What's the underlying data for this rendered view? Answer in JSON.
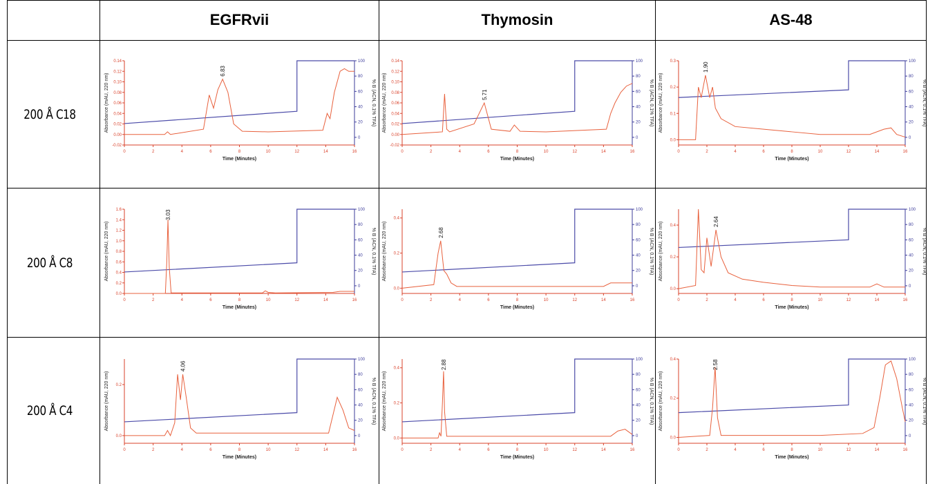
{
  "headers": {
    "corner": "",
    "col1": "EGFRvii",
    "col2": "Thymosin",
    "col3": "AS-48"
  },
  "rows": [
    "200 Å C18",
    "200 Å C8",
    "200 Å C4"
  ],
  "colors": {
    "trace": "#e8603c",
    "gradient": "#4a4aa8",
    "axis_left": "#d9412a",
    "axis_right": "#3b3b9a"
  },
  "chart_data": [
    {
      "type": "line",
      "title": "",
      "xlabel": "Time (Minutes)",
      "ylabel": "Absorbance (mAU, 220 nm)",
      "y2label": "% B (ACN, 0.1% TFA)",
      "xlim": [
        0,
        16
      ],
      "xticks": [
        "0",
        "2",
        "4",
        "6",
        "8",
        "10",
        "12",
        "14",
        "16"
      ],
      "ylim": [
        -0.02,
        0.14
      ],
      "yticks": [
        "-0.02",
        "0.00",
        "0.02",
        "0.04",
        "0.06",
        "0.08",
        "0.10",
        "0.12",
        "0.14"
      ],
      "y2lim": [
        -10,
        100
      ],
      "y2ticks": [
        "0",
        "20",
        "40",
        "60",
        "80",
        "100"
      ],
      "peak_label": "6.83",
      "peak_x": 6.83,
      "x": [
        0,
        2.8,
        3.0,
        3.2,
        5.5,
        5.9,
        6.2,
        6.5,
        6.83,
        7.2,
        7.6,
        8.2,
        10,
        13.8,
        14.1,
        14.3,
        14.6,
        15.0,
        15.3,
        15.6,
        16
      ],
      "y": [
        0.0,
        0.0,
        0.005,
        0.0,
        0.01,
        0.075,
        0.05,
        0.085,
        0.105,
        0.08,
        0.02,
        0.006,
        0.005,
        0.008,
        0.04,
        0.03,
        0.08,
        0.12,
        0.125,
        0.12,
        0.12
      ],
      "gradient": {
        "x": [
          0,
          12,
          12,
          16
        ],
        "y": [
          18,
          34,
          100,
          100
        ]
      }
    },
    {
      "type": "line",
      "title": "",
      "xlabel": "Time (Minutes)",
      "ylabel": "Absorbance (mAU, 220 nm)",
      "y2label": "% B (ACN, 0.1% TFA)",
      "xlim": [
        0,
        16
      ],
      "xticks": [
        "0",
        "2",
        "4",
        "6",
        "8",
        "10",
        "12",
        "14",
        "16"
      ],
      "ylim": [
        -0.02,
        0.14
      ],
      "yticks": [
        "-0.02",
        "0.00",
        "0.02",
        "0.04",
        "0.06",
        "0.08",
        "0.10",
        "0.12",
        "0.14"
      ],
      "y2lim": [
        -10,
        100
      ],
      "y2ticks": [
        "0",
        "20",
        "40",
        "60",
        "80",
        "100"
      ],
      "peak_label": "5.71",
      "peak_x": 5.71,
      "x": [
        0,
        2.8,
        2.95,
        3.1,
        3.3,
        5.0,
        5.71,
        6.2,
        7.5,
        7.8,
        8.2,
        10,
        14.2,
        14.5,
        14.8,
        15.2,
        15.6,
        16
      ],
      "y": [
        0.0,
        0.005,
        0.077,
        0.01,
        0.005,
        0.02,
        0.06,
        0.01,
        0.006,
        0.018,
        0.006,
        0.005,
        0.01,
        0.04,
        0.06,
        0.08,
        0.092,
        0.097
      ],
      "gradient": {
        "x": [
          0,
          12,
          12,
          16
        ],
        "y": [
          18,
          34,
          100,
          100
        ]
      }
    },
    {
      "type": "line",
      "title": "",
      "xlabel": "Time (Minutes)",
      "ylabel": "Absorbance (mAU, 220 nm)",
      "y2label": "% B (ACN, 0.1% TFA)",
      "xlim": [
        0,
        16
      ],
      "xticks": [
        "0",
        "2",
        "4",
        "6",
        "8",
        "10",
        "12",
        "14",
        "16"
      ],
      "ylim": [
        -0.02,
        0.3
      ],
      "yticks": [
        "0.0",
        "0.1",
        "0.2",
        "0.3"
      ],
      "y2lim": [
        -10,
        100
      ],
      "y2ticks": [
        "0",
        "20",
        "40",
        "60",
        "80",
        "100"
      ],
      "peak_label": "1.90",
      "peak_x": 1.9,
      "x": [
        0,
        1.2,
        1.4,
        1.6,
        1.9,
        2.2,
        2.4,
        2.6,
        3.0,
        4.0,
        6.0,
        8.0,
        10,
        12,
        13.5,
        14.5,
        15.0,
        15.4,
        16
      ],
      "y": [
        0.0,
        0.0,
        0.2,
        0.16,
        0.245,
        0.16,
        0.2,
        0.12,
        0.08,
        0.05,
        0.04,
        0.03,
        0.02,
        0.02,
        0.02,
        0.04,
        0.045,
        0.02,
        0.01
      ],
      "gradient": {
        "x": [
          0,
          12,
          12,
          16
        ],
        "y": [
          52,
          62,
          100,
          100
        ]
      }
    },
    {
      "type": "line",
      "title": "",
      "xlabel": "Time (Minutes)",
      "ylabel": "Absorbance (mAU, 220 nm)",
      "y2label": "% B (ACN, 0.1% TFA)",
      "xlim": [
        0,
        16
      ],
      "xticks": [
        "0",
        "2",
        "4",
        "6",
        "8",
        "10",
        "12",
        "14",
        "16"
      ],
      "ylim": [
        0,
        1.6
      ],
      "yticks": [
        "0.0",
        "0.2",
        "0.4",
        "0.6",
        "0.8",
        "1.0",
        "1.2",
        "1.4",
        "1.6"
      ],
      "y2lim": [
        -10,
        100
      ],
      "y2ticks": [
        "0",
        "20",
        "40",
        "60",
        "80",
        "100"
      ],
      "peak_label": "3.03",
      "peak_x": 3.03,
      "x": [
        0,
        2.85,
        2.95,
        3.03,
        3.12,
        3.25,
        9.6,
        9.8,
        10.0,
        10.5,
        14.5,
        15,
        16
      ],
      "y": [
        0.0,
        0.0,
        0.6,
        1.4,
        0.5,
        0.01,
        0.01,
        0.05,
        0.02,
        0.01,
        0.02,
        0.04,
        0.04
      ],
      "gradient": {
        "x": [
          0,
          12,
          12,
          16
        ],
        "y": [
          18,
          30,
          100,
          100
        ]
      }
    },
    {
      "type": "line",
      "title": "",
      "xlabel": "Time (Minutes)",
      "ylabel": "Absorbance (mAU, 220 nm)",
      "y2label": "% B (ACN, 0.1% TFA)",
      "xlim": [
        0,
        16
      ],
      "xticks": [
        "0",
        "2",
        "4",
        "6",
        "8",
        "10",
        "12",
        "14",
        "16"
      ],
      "ylim": [
        -0.03,
        0.45
      ],
      "yticks": [
        "0.0",
        "0.2",
        "0.4"
      ],
      "y2lim": [
        -10,
        100
      ],
      "y2ticks": [
        "0",
        "20",
        "40",
        "60",
        "80",
        "100"
      ],
      "peak_label": "2.68",
      "peak_x": 2.68,
      "x": [
        0,
        2.2,
        2.5,
        2.68,
        2.9,
        3.1,
        3.4,
        3.8,
        6,
        10,
        14,
        14.5,
        16
      ],
      "y": [
        0.0,
        0.02,
        0.2,
        0.27,
        0.1,
        0.08,
        0.03,
        0.01,
        0.01,
        0.01,
        0.01,
        0.03,
        0.03
      ],
      "gradient": {
        "x": [
          0,
          12,
          12,
          16
        ],
        "y": [
          18,
          30,
          100,
          100
        ]
      }
    },
    {
      "type": "line",
      "title": "",
      "xlabel": "Time (Minutes)",
      "ylabel": "Absorbance (mAU, 220 nm)",
      "y2label": "% B (ACN, 0.1% TFA)",
      "xlim": [
        0,
        16
      ],
      "xticks": [
        "0",
        "2",
        "4",
        "6",
        "8",
        "10",
        "12",
        "14",
        "16"
      ],
      "ylim": [
        -0.03,
        0.5
      ],
      "yticks": [
        "0.0",
        "0.2",
        "0.4"
      ],
      "y2lim": [
        -10,
        100
      ],
      "y2ticks": [
        "0",
        "20",
        "40",
        "60",
        "80",
        "100"
      ],
      "peak_label": "2.64",
      "peak_x": 2.64,
      "x": [
        0,
        1.2,
        1.4,
        1.6,
        1.8,
        2.0,
        2.3,
        2.64,
        3.0,
        3.5,
        4.5,
        6,
        8,
        10,
        13.5,
        14,
        14.5,
        16
      ],
      "y": [
        0.0,
        0.02,
        0.5,
        0.12,
        0.1,
        0.32,
        0.14,
        0.37,
        0.2,
        0.1,
        0.06,
        0.04,
        0.02,
        0.01,
        0.01,
        0.03,
        0.01,
        0.01
      ],
      "gradient": {
        "x": [
          0,
          12,
          12,
          16
        ],
        "y": [
          50,
          60,
          100,
          100
        ]
      }
    },
    {
      "type": "line",
      "title": "",
      "xlabel": "Time (Minutes)",
      "ylabel": "Absorbance (mAU, 220 nm)",
      "y2label": "% B (ACN, 0.1% TFA)",
      "xlim": [
        0,
        16
      ],
      "xticks": [
        "0",
        "2",
        "4",
        "6",
        "8",
        "10",
        "12",
        "14",
        "16"
      ],
      "ylim": [
        -0.03,
        0.3
      ],
      "yticks": [
        "0.0",
        "0.2"
      ],
      "y2lim": [
        -10,
        100
      ],
      "y2ticks": [
        "0",
        "20",
        "40",
        "60",
        "80",
        "100"
      ],
      "peak_label": "4.06",
      "peak_x": 4.06,
      "x": [
        0,
        2.8,
        3.0,
        3.2,
        3.5,
        3.7,
        3.9,
        4.06,
        4.3,
        4.6,
        5.0,
        8,
        14.2,
        14.5,
        14.8,
        15.2,
        15.6,
        16
      ],
      "y": [
        0.0,
        0.0,
        0.02,
        0.0,
        0.05,
        0.24,
        0.14,
        0.24,
        0.15,
        0.03,
        0.01,
        0.01,
        0.01,
        0.08,
        0.15,
        0.1,
        0.03,
        0.02
      ],
      "gradient": {
        "x": [
          0,
          12,
          12,
          16
        ],
        "y": [
          18,
          30,
          100,
          100
        ]
      }
    },
    {
      "type": "line",
      "title": "",
      "xlabel": "Time (Minutes)",
      "ylabel": "Absorbance (mAU, 220 nm)",
      "y2label": "% B (ACN, 0.1% TFA)",
      "xlim": [
        0,
        16
      ],
      "xticks": [
        "0",
        "2",
        "4",
        "6",
        "8",
        "10",
        "12",
        "14",
        "16"
      ],
      "ylim": [
        -0.03,
        0.45
      ],
      "yticks": [
        "0.0",
        "0.2",
        "0.4"
      ],
      "y2lim": [
        -10,
        100
      ],
      "y2ticks": [
        "0",
        "20",
        "40",
        "60",
        "80",
        "100"
      ],
      "peak_label": "2.88",
      "peak_x": 2.88,
      "x": [
        0,
        2.5,
        2.6,
        2.7,
        2.8,
        2.88,
        2.95,
        3.1,
        6,
        10,
        14.5,
        15,
        15.5,
        16
      ],
      "y": [
        0.0,
        0.0,
        0.03,
        0.01,
        0.2,
        0.38,
        0.15,
        0.01,
        0.01,
        0.01,
        0.01,
        0.04,
        0.05,
        0.02
      ],
      "gradient": {
        "x": [
          0,
          12,
          12,
          16
        ],
        "y": [
          18,
          30,
          100,
          100
        ]
      }
    },
    {
      "type": "line",
      "title": "",
      "xlabel": "Time (Minutes)",
      "ylabel": "Absorbance (mAU, 220 nm)",
      "y2label": "% B (ACN, 0.1% TFA)",
      "xlim": [
        0,
        16
      ],
      "xticks": [
        "0",
        "2",
        "4",
        "6",
        "8",
        "10",
        "12",
        "14",
        "16"
      ],
      "ylim": [
        -0.03,
        0.4
      ],
      "yticks": [
        "0.0",
        "0.2",
        "0.4"
      ],
      "y2lim": [
        -10,
        100
      ],
      "y2ticks": [
        "0",
        "20",
        "40",
        "60",
        "80",
        "100"
      ],
      "peak_label": "2.58",
      "peak_x": 2.58,
      "x": [
        0,
        2.2,
        2.4,
        2.58,
        2.75,
        3.0,
        6,
        10,
        13,
        13.8,
        14.2,
        14.6,
        15.0,
        15.4,
        15.8,
        16
      ],
      "y": [
        0.0,
        0.01,
        0.15,
        0.36,
        0.1,
        0.01,
        0.01,
        0.01,
        0.02,
        0.05,
        0.2,
        0.37,
        0.39,
        0.3,
        0.15,
        0.08
      ],
      "gradient": {
        "x": [
          0,
          12,
          12,
          16
        ],
        "y": [
          30,
          40,
          100,
          100
        ]
      }
    }
  ]
}
